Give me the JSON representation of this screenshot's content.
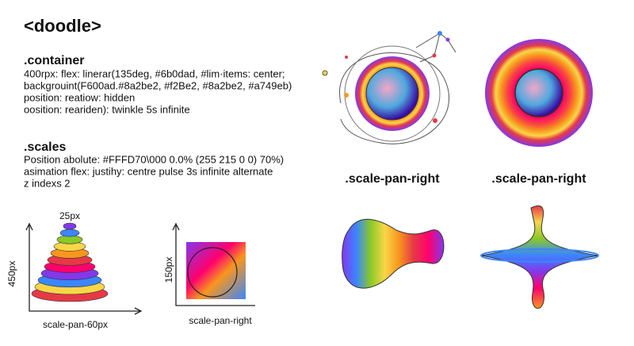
{
  "header": {
    "title": "<doodle>"
  },
  "container": {
    "heading": ".container",
    "lines": [
      "400rpx: flex: linerar(135deg, #6b0dad, #lim·items: center;",
      "backgrouint(F600ad.#8a2be2, #f2Be2, #8a2be2, #a749eb)",
      "position: reatiow: hidden",
      "oosition: reariden): twinkle 5s infinite"
    ]
  },
  "scales": {
    "heading": ".scales",
    "lines": [
      "Position abolute: #FFFD70\\000 0.0% (255 215 0 0) 70%)",
      "asimation flex: justihy: centre pulse 3s infinite alternate",
      "z indexs 2"
    ]
  },
  "figures": {
    "cone": {
      "top_label": "25px",
      "y_label": "450px",
      "x_label": "scale-pan-60px"
    },
    "square": {
      "y_label": "150px",
      "x_label": "scale-pan-right"
    },
    "captions": [
      ".scale-pan-right",
      ".scale-pan-right"
    ]
  }
}
